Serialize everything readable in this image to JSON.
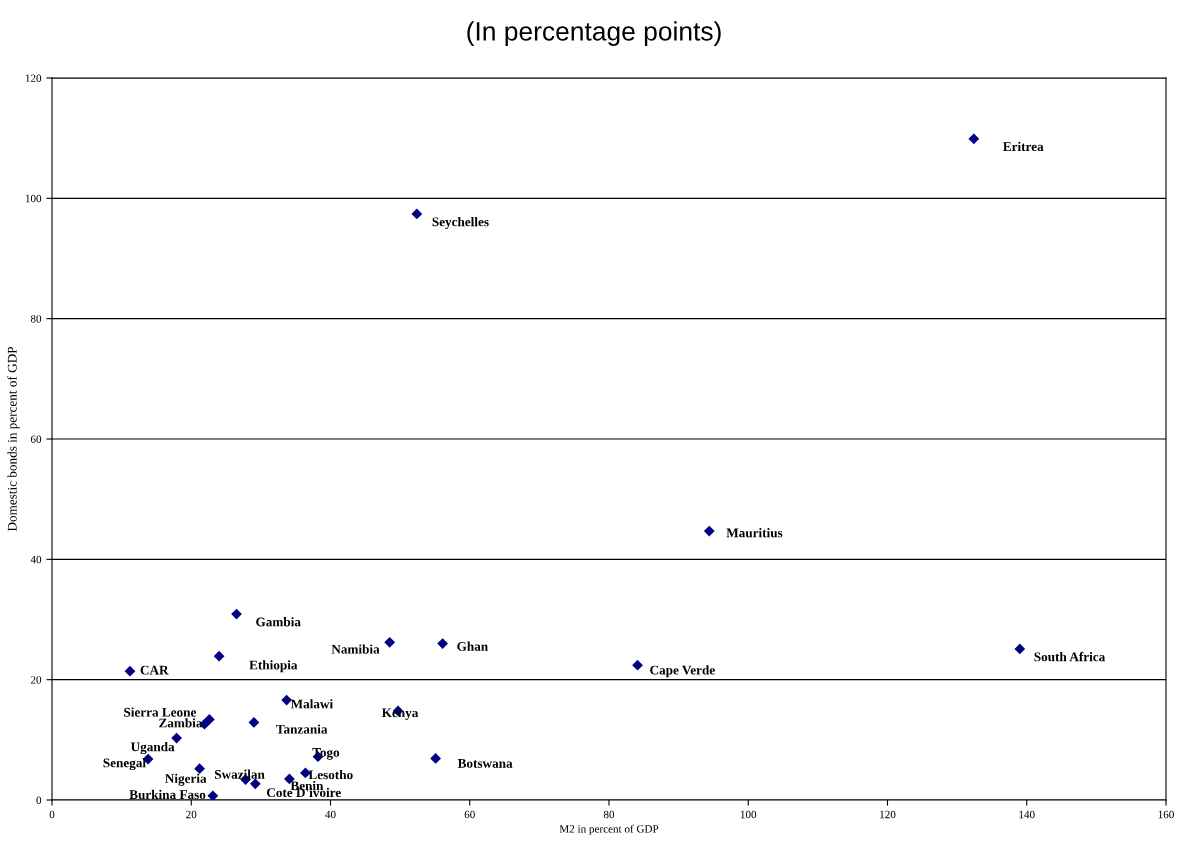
{
  "chart_data": {
    "type": "scatter",
    "title": "(In percentage points)",
    "xlabel": "M2 in percent of GDP",
    "ylabel": "Domestic bonds in percent of GDP",
    "x": [
      132.4,
      52.4,
      94.4,
      139.0,
      84.1,
      26.5,
      48.5,
      56.1,
      24.0,
      11.2,
      33.7,
      49.7,
      22.6,
      21.9,
      29.0,
      17.9,
      38.2,
      55.1,
      13.8,
      21.2,
      36.4,
      27.8,
      29.2,
      34.1,
      23.1
    ],
    "series": [
      {
        "color": "#000080",
        "values": [
          109.9,
          97.4,
          44.7,
          25.1,
          22.4,
          30.9,
          26.2,
          26.0,
          23.9,
          21.4,
          16.6,
          14.8,
          13.4,
          12.6,
          12.9,
          10.3,
          7.2,
          6.9,
          6.8,
          5.2,
          4.5,
          3.4,
          2.7,
          3.5,
          0.7
        ]
      }
    ],
    "annotations": [
      {
        "text": "Eritrea",
        "x": 132.4,
        "y": 109.9
      },
      {
        "text": "Seychelles",
        "x": 52.4,
        "y": 97.4
      },
      {
        "text": "Mauritius",
        "x": 94.4,
        "y": 44.7
      },
      {
        "text": "South Africa",
        "x": 139.0,
        "y": 25.1
      },
      {
        "text": "Cape Verde",
        "x": 84.1,
        "y": 22.4
      },
      {
        "text": "Gambia",
        "x": 26.5,
        "y": 30.9
      },
      {
        "text": "Namibia",
        "x": 48.5,
        "y": 26.2
      },
      {
        "text": "Ghan",
        "x": 56.1,
        "y": 26.0
      },
      {
        "text": "Ethiopia",
        "x": 24.0,
        "y": 23.9
      },
      {
        "text": "CAR",
        "x": 11.2,
        "y": 21.4
      },
      {
        "text": "Malawi",
        "x": 33.7,
        "y": 16.6
      },
      {
        "text": "Kenya",
        "x": 49.7,
        "y": 14.8
      },
      {
        "text": "Sierra Leone",
        "x": 22.6,
        "y": 13.4
      },
      {
        "text": "Zambia",
        "x": 21.9,
        "y": 12.6
      },
      {
        "text": "Tanzania",
        "x": 29.0,
        "y": 12.9
      },
      {
        "text": "Uganda",
        "x": 17.9,
        "y": 10.3
      },
      {
        "text": "Togo",
        "x": 38.2,
        "y": 7.2
      },
      {
        "text": "Botswana",
        "x": 55.1,
        "y": 6.9
      },
      {
        "text": "Senegal",
        "x": 13.8,
        "y": 6.8
      },
      {
        "text": "Nigeria",
        "x": 21.2,
        "y": 5.2
      },
      {
        "text": "Lesotho",
        "x": 36.4,
        "y": 4.5
      },
      {
        "text": "Swazilan",
        "x": 27.8,
        "y": 3.4
      },
      {
        "text": "Cote D'ivoire",
        "x": 29.2,
        "y": 2.7
      },
      {
        "text": "Benin",
        "x": 34.1,
        "y": 3.5
      },
      {
        "text": "Burkina Faso",
        "x": 23.1,
        "y": 0.7
      }
    ],
    "xlim": [
      0,
      160
    ],
    "xticks": [
      0,
      20,
      40,
      60,
      80,
      100,
      120,
      140,
      160
    ],
    "ylim": [
      0,
      120
    ],
    "yticks": [
      0,
      20,
      40,
      60,
      80,
      100,
      120
    ],
    "grid": "y",
    "marker": "diamond",
    "legend": false
  }
}
